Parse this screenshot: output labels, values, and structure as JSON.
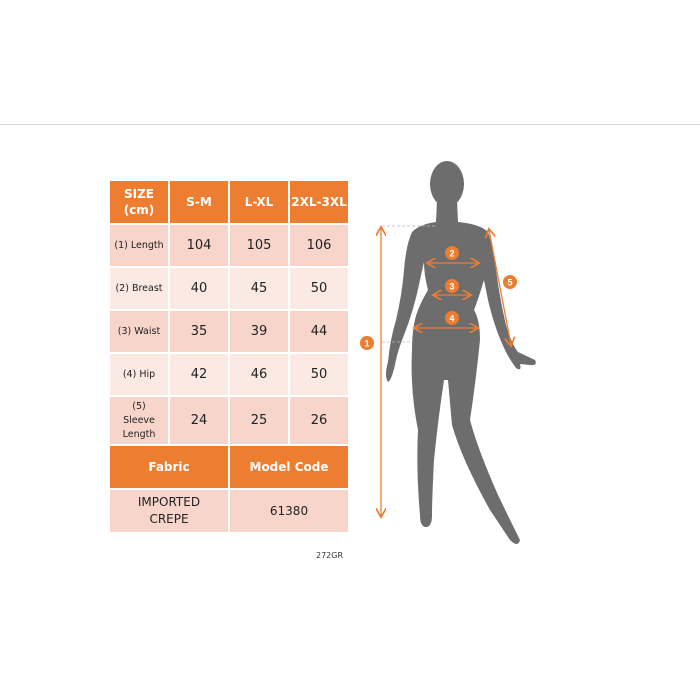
{
  "table": {
    "header": [
      "SIZE (cm)",
      "S-M",
      "L-XL",
      "2XL-3XL"
    ],
    "rows": [
      {
        "label": "(1) Length",
        "values": [
          "104",
          "105",
          "106"
        ]
      },
      {
        "label": "(2) Breast",
        "values": [
          "40",
          "45",
          "50"
        ]
      },
      {
        "label": "(3) Waist",
        "values": [
          "35",
          "39",
          "44"
        ]
      },
      {
        "label": "(4) Hip",
        "values": [
          "42",
          "46",
          "50"
        ]
      },
      {
        "label": "(5) Sleeve Length",
        "values": [
          "24",
          "25",
          "26"
        ]
      }
    ],
    "footer_header": [
      "Fabric",
      "Model Code"
    ],
    "footer_values": [
      "IMPORTED CREPE",
      "61380"
    ]
  },
  "product_code": "272GR",
  "diagram": {
    "markers": [
      "1",
      "2",
      "3",
      "4",
      "5"
    ]
  },
  "colors": {
    "accent": "#ED7D31",
    "silhouette": "#6d6d6d",
    "cell_dark": "#F8D5CA",
    "cell_light": "#FBE9E3"
  }
}
